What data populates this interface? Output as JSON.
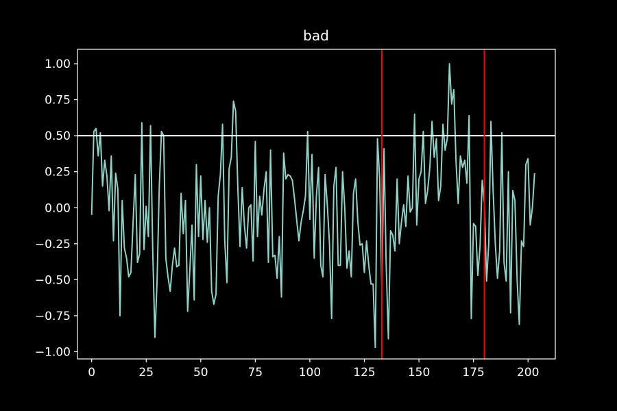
{
  "chart_data": {
    "type": "line",
    "title": "bad",
    "xlabel": "",
    "ylabel": "",
    "xlim": [
      -6.5,
      212.5
    ],
    "ylim": [
      -1.05,
      1.1
    ],
    "x_ticks": [
      0,
      25,
      50,
      75,
      100,
      125,
      150,
      175,
      200
    ],
    "x_tick_labels": [
      "0",
      "25",
      "50",
      "75",
      "100",
      "125",
      "150",
      "175",
      "200"
    ],
    "y_ticks": [
      1.0,
      0.75,
      0.5,
      0.25,
      0.0,
      -0.25,
      -0.5,
      -0.75,
      -1.0
    ],
    "y_tick_labels": [
      "1.00",
      "0.75",
      "0.50",
      "0.25",
      "0.00",
      "−0.25",
      "−0.50",
      "−0.75",
      "−1.00"
    ],
    "grid": false,
    "legend": "none",
    "series": [
      {
        "color": "#8dd3c7",
        "x": [
          0,
          1,
          2,
          3,
          4,
          5,
          6,
          7,
          8,
          9,
          10,
          11,
          12,
          13,
          14,
          15,
          16,
          17,
          18,
          19,
          20,
          21,
          22,
          23,
          24,
          25,
          26,
          27,
          28,
          29,
          30,
          31,
          32,
          33,
          34,
          35,
          36,
          37,
          38,
          39,
          40,
          41,
          42,
          43,
          44,
          45,
          46,
          47,
          48,
          49,
          50,
          51,
          52,
          53,
          54,
          55,
          56,
          57,
          58,
          59,
          60,
          61,
          62,
          63,
          64,
          65,
          66,
          67,
          68,
          69,
          70,
          71,
          72,
          73,
          74,
          75,
          76,
          77,
          78,
          79,
          80,
          81,
          82,
          83,
          84,
          85,
          86,
          87,
          88,
          89,
          90,
          91,
          92,
          93,
          94,
          95,
          96,
          97,
          98,
          99,
          100,
          101,
          102,
          103,
          104,
          105,
          106,
          107,
          108,
          109,
          110,
          111,
          112,
          113,
          114,
          115,
          116,
          117,
          118,
          119,
          120,
          121,
          122,
          123,
          124,
          125,
          126,
          127,
          128,
          129,
          130,
          131,
          132,
          133,
          134,
          135,
          136,
          137,
          138,
          139,
          140,
          141,
          142,
          143,
          144,
          145,
          146,
          147,
          148,
          149,
          150,
          151,
          152,
          153,
          154,
          155,
          156,
          157,
          158,
          159,
          160,
          161,
          162,
          163,
          164,
          165,
          166,
          167,
          168,
          169,
          170,
          171,
          172,
          173,
          174,
          175,
          176,
          177,
          178,
          179,
          180,
          181,
          182,
          183,
          184,
          185,
          186,
          187,
          188,
          189,
          190,
          191,
          192,
          193,
          194,
          195,
          196,
          197,
          198,
          199,
          200,
          201,
          202,
          203
        ],
        "y": [
          -0.05,
          0.53,
          0.55,
          0.36,
          0.52,
          0.15,
          0.33,
          0.22,
          -0.02,
          0.36,
          -0.23,
          0.24,
          0.13,
          -0.75,
          0.05,
          -0.28,
          -0.35,
          -0.48,
          -0.45,
          -0.1,
          0.23,
          -0.38,
          -0.32,
          0.59,
          -0.29,
          0.01,
          -0.2,
          0.57,
          -0.3,
          -0.9,
          -0.5,
          0.15,
          0.53,
          0.5,
          -0.35,
          -0.48,
          -0.58,
          -0.4,
          -0.28,
          -0.41,
          -0.4,
          0.1,
          -0.18,
          0.05,
          -0.72,
          -0.43,
          -0.12,
          -0.64,
          0.3,
          -0.2,
          0.22,
          -0.22,
          0.05,
          -0.24,
          0.0,
          -0.58,
          -0.67,
          -0.6,
          0.08,
          0.23,
          0.58,
          -0.23,
          -0.52,
          0.27,
          0.35,
          0.74,
          0.67,
          0.14,
          -0.27,
          0.14,
          -0.12,
          -0.28,
          0.0,
          0.02,
          -0.37,
          0.46,
          -0.2,
          0.08,
          -0.05,
          0.13,
          0.25,
          -0.38,
          0.4,
          -0.34,
          -0.33,
          -0.49,
          -0.2,
          -0.62,
          0.38,
          0.2,
          0.23,
          0.22,
          0.19,
          0.06,
          -0.09,
          -0.23,
          -0.1,
          -0.02,
          0.08,
          0.53,
          -0.08,
          0.37,
          -0.35,
          0.08,
          0.28,
          -0.4,
          -0.48,
          0.23,
          0.02,
          -0.25,
          -0.77,
          0.15,
          0.28,
          -0.4,
          -0.4,
          0.25,
          0.0,
          -0.42,
          -0.3,
          -0.48,
          0.1,
          0.2,
          -0.1,
          -0.26,
          -0.25,
          -0.45,
          -0.23,
          -0.4,
          -0.53,
          -0.53,
          -0.97,
          0.48,
          0.2,
          -0.55,
          0.41,
          -0.4,
          -0.91,
          -0.16,
          -0.19,
          -0.3,
          0.2,
          -0.25,
          -0.1,
          0.02,
          -0.13,
          0.22,
          -0.03,
          0.0,
          0.65,
          -0.12,
          0.2,
          0.25,
          0.53,
          0.03,
          0.12,
          0.28,
          0.6,
          0.35,
          0.48,
          0.05,
          0.15,
          0.58,
          0.4,
          0.48,
          1.0,
          0.72,
          0.82,
          0.32,
          0.03,
          0.36,
          0.28,
          0.33,
          0.17,
          0.64,
          -0.77,
          -0.11,
          -0.13,
          -0.47,
          -0.27,
          0.19,
          0.03,
          -0.51,
          -0.25,
          0.6,
          0.12,
          -0.25,
          -0.49,
          -0.3,
          0.52,
          -0.38,
          -0.51,
          0.25,
          -0.73,
          0.12,
          0.05,
          -0.5,
          -0.81,
          -0.23,
          -0.27,
          0.3,
          0.34,
          -0.12,
          0.0,
          0.24
        ]
      }
    ],
    "hlines": [
      {
        "y": 0.5,
        "color": "#ffffff"
      }
    ],
    "vlines": [
      {
        "x": 133,
        "color": "#ff0000"
      },
      {
        "x": 180,
        "color": "#ff0000"
      }
    ],
    "colors": {
      "background": "#000000",
      "axes": "#ffffff",
      "text": "#ffffff"
    }
  }
}
